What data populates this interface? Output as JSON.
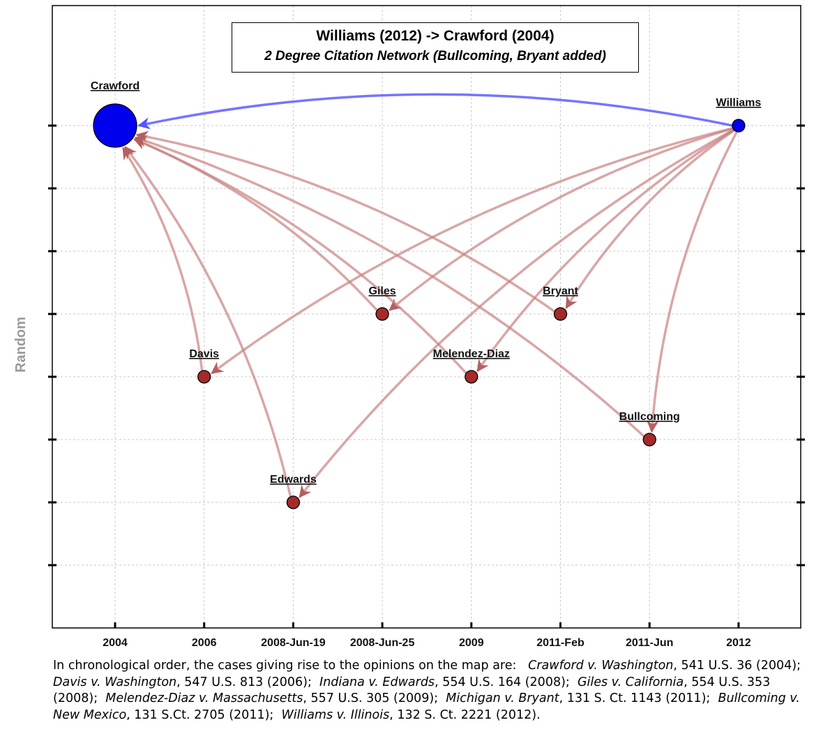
{
  "chart_data": {
    "type": "network",
    "title": "Williams (2012) -> Crawford (2004)",
    "subtitle": "2 Degree Citation Network (Bullcoming, Bryant added)",
    "ylabel": "Random",
    "x_categories": [
      "2004",
      "2006",
      "2008-Jun-19",
      "2008-Jun-25",
      "2009",
      "2011-Feb",
      "2011-Jun",
      "2012"
    ],
    "y_range": [
      0,
      9
    ],
    "grid": true,
    "nodes": [
      {
        "id": "Crawford",
        "label": "Crawford",
        "x": "2004",
        "y": 8,
        "size": "large",
        "color": "#0000ee"
      },
      {
        "id": "Davis",
        "label": "Davis",
        "x": "2006",
        "y": 4,
        "size": "small",
        "color": "#a52a2a"
      },
      {
        "id": "Edwards",
        "label": "Edwards",
        "x": "2008-Jun-19",
        "y": 2,
        "size": "small",
        "color": "#a52a2a"
      },
      {
        "id": "Giles",
        "label": "Giles",
        "x": "2008-Jun-25",
        "y": 5,
        "size": "small",
        "color": "#a52a2a"
      },
      {
        "id": "Melendez-Diaz",
        "label": "Melendez-Diaz",
        "x": "2009",
        "y": 4,
        "size": "small",
        "color": "#a52a2a"
      },
      {
        "id": "Bryant",
        "label": "Bryant",
        "x": "2011-Feb",
        "y": 5,
        "size": "small",
        "color": "#a52a2a"
      },
      {
        "id": "Bullcoming",
        "label": "Bullcoming",
        "x": "2011-Jun",
        "y": 3,
        "size": "small",
        "color": "#a52a2a"
      },
      {
        "id": "Williams",
        "label": "Williams",
        "x": "2012",
        "y": 8,
        "size": "small",
        "color": "#0000ee"
      }
    ],
    "edges": [
      {
        "from": "Williams",
        "to": "Crawford",
        "color": "#6666ff"
      },
      {
        "from": "Williams",
        "to": "Davis",
        "color": "#c98080"
      },
      {
        "from": "Williams",
        "to": "Edwards",
        "color": "#c98080"
      },
      {
        "from": "Williams",
        "to": "Giles",
        "color": "#c98080"
      },
      {
        "from": "Williams",
        "to": "Melendez-Diaz",
        "color": "#c98080"
      },
      {
        "from": "Williams",
        "to": "Bryant",
        "color": "#c98080"
      },
      {
        "from": "Williams",
        "to": "Bullcoming",
        "color": "#c98080"
      },
      {
        "from": "Davis",
        "to": "Crawford",
        "color": "#c98080"
      },
      {
        "from": "Edwards",
        "to": "Crawford",
        "color": "#c98080"
      },
      {
        "from": "Giles",
        "to": "Crawford",
        "color": "#c98080"
      },
      {
        "from": "Melendez-Diaz",
        "to": "Crawford",
        "color": "#c98080"
      },
      {
        "from": "Bryant",
        "to": "Crawford",
        "color": "#c98080"
      },
      {
        "from": "Bullcoming",
        "to": "Crawford",
        "color": "#c98080"
      }
    ]
  },
  "caption": {
    "intro": "In chronological order, the cases giving rise to the opinions on the map are:",
    "cases": [
      {
        "name": "Crawford v. Washington",
        "cite": ", 541 U.S. 36 (2004);"
      },
      {
        "name": "Davis v. Washington",
        "cite": ", 547 U.S. 813 (2006);"
      },
      {
        "name": "Indiana v. Edwards",
        "cite": ", 554 U.S. 164 (2008);"
      },
      {
        "name": "Giles v. California",
        "cite": ", 554 U.S. 353 (2008);"
      },
      {
        "name": "Melendez-Diaz v. Massachusetts",
        "cite": ", 557 U.S. 305 (2009);"
      },
      {
        "name": "Michigan v. Bryant",
        "cite": ", 131 S. Ct. 1143 (2011);"
      },
      {
        "name": "Bullcoming v. New Mexico",
        "cite": ", 131 S.Ct. 2705 (2011);"
      },
      {
        "name": "Williams v. Illinois",
        "cite": ", 132 S. Ct. 2221 (2012)."
      }
    ]
  }
}
